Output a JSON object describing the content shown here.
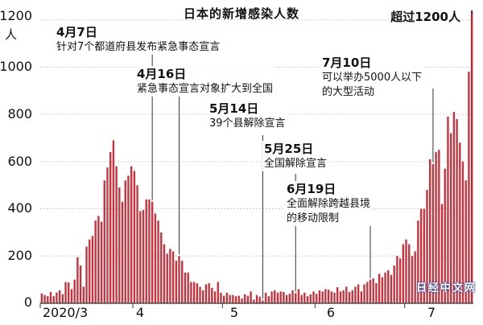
{
  "chart_data": {
    "type": "bar",
    "title": "日本的新增感染人数",
    "y_unit": "人",
    "ylim": [
      0,
      1250
    ],
    "yticks": [
      "0",
      "200",
      "400",
      "600",
      "800",
      "1000",
      "1200"
    ],
    "xtick_labels": [
      "2020/3",
      "4",
      "5",
      "6",
      "7"
    ],
    "bar_color": "#c8323c",
    "highlight_color": "#d01c2c",
    "x_start": "2020-03-01",
    "values": [
      42,
      35,
      30,
      48,
      30,
      45,
      55,
      38,
      90,
      88,
      60,
      100,
      195,
      160,
      70,
      240,
      270,
      285,
      350,
      370,
      345,
      520,
      575,
      640,
      690,
      580,
      490,
      430,
      520,
      540,
      580,
      560,
      500,
      390,
      395,
      440,
      440,
      430,
      380,
      350,
      300,
      250,
      210,
      230,
      220,
      180,
      200,
      180,
      130,
      130,
      90,
      90,
      85,
      70,
      55,
      80,
      85,
      65,
      50,
      90,
      45,
      32,
      45,
      35,
      35,
      30,
      32,
      20,
      38,
      32,
      50,
      15,
      35,
      28,
      12,
      45,
      30,
      50,
      55,
      45,
      50,
      48,
      35,
      40,
      55,
      42,
      60,
      35,
      45,
      30,
      38,
      50,
      40,
      55,
      50,
      60,
      58,
      50,
      45,
      68,
      50,
      55,
      70,
      48,
      55,
      70,
      80,
      50,
      80,
      90,
      100,
      105,
      85,
      125,
      110,
      130,
      140,
      120,
      160,
      200,
      190,
      250,
      270,
      250,
      200,
      220,
      350,
      400,
      400,
      480,
      610,
      590,
      640,
      650,
      420,
      570,
      790,
      720,
      810,
      780,
      680,
      600,
      520,
      980,
      1240
    ]
  },
  "annotations": [
    {
      "date": "4月7日",
      "text": "针对7个都道府县发布紧急事态宣言"
    },
    {
      "date": "4月16日",
      "text": "紧急事态宣言对象扩大到全国"
    },
    {
      "date": "5月14日",
      "text": "39个县解除宣言"
    },
    {
      "date": "5月25日",
      "text": "全国解除宣言"
    },
    {
      "date": "6月19日",
      "text": "全面解除跨越县境",
      "text2": "的移动限制"
    },
    {
      "date": "7月10日",
      "text": "可以举办5000人以下",
      "text2": "的大型活动"
    }
  ],
  "peak_note": "超过1200人",
  "watermark": "日经中文网"
}
